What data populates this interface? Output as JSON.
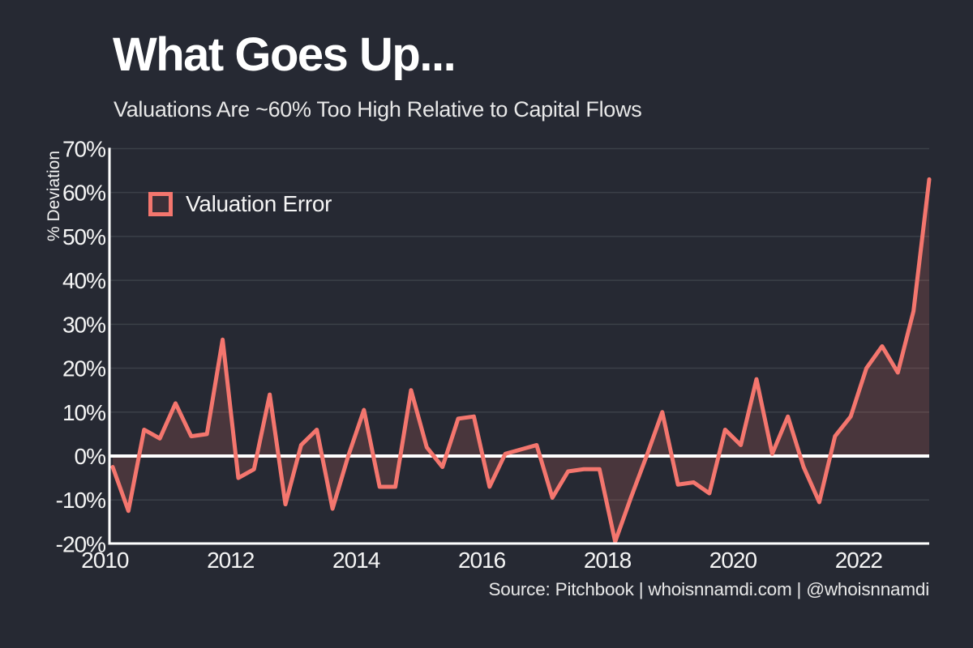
{
  "title": "What Goes Up...",
  "subtitle": "Valuations Are ~60% Too High Relative to Capital Flows",
  "source": "Source: Pitchbook | whoisnnamdi.com | @whoisnnamdi",
  "y_axis_label": "% Deviation",
  "legend": {
    "label": "Valuation Error"
  },
  "colors": {
    "background": "#262933",
    "line": "#f4766e",
    "area_fill": "rgba(248,118,109,0.17)",
    "zero_line": "#ffffff",
    "axis": "#ffffff",
    "gridline": "#3b4048",
    "text": "#f5f5f5",
    "muted_text": "#e8e8e8"
  },
  "chart_data": {
    "type": "area",
    "title": "What Goes Up...",
    "subtitle": "Valuations Are ~60% Too High Relative to Capital Flows",
    "ylabel": "% Deviation",
    "xlabel": "",
    "ylim": [
      -20,
      70
    ],
    "xlim": [
      2010,
      2023.25
    ],
    "grid": "horizontal",
    "legend_position": "top-left-inside",
    "y_ticks": [
      70,
      60,
      50,
      40,
      30,
      20,
      10,
      0,
      -10,
      -20
    ],
    "y_tick_suffix": "%",
    "x_ticks": [
      2010,
      2012,
      2014,
      2016,
      2018,
      2020,
      2022
    ],
    "frequency": "quarterly",
    "series": [
      {
        "name": "Valuation Error",
        "quarters": [
          "2010Q1",
          "2010Q2",
          "2010Q3",
          "2010Q4",
          "2011Q1",
          "2011Q2",
          "2011Q3",
          "2011Q4",
          "2012Q1",
          "2012Q2",
          "2012Q3",
          "2012Q4",
          "2013Q1",
          "2013Q2",
          "2013Q3",
          "2013Q4",
          "2014Q1",
          "2014Q2",
          "2014Q3",
          "2014Q4",
          "2015Q1",
          "2015Q2",
          "2015Q3",
          "2015Q4",
          "2016Q1",
          "2016Q2",
          "2016Q3",
          "2016Q4",
          "2017Q1",
          "2017Q2",
          "2017Q3",
          "2017Q4",
          "2018Q1",
          "2018Q2",
          "2018Q3",
          "2018Q4",
          "2019Q1",
          "2019Q2",
          "2019Q3",
          "2019Q4",
          "2020Q1",
          "2020Q2",
          "2020Q3",
          "2020Q4",
          "2021Q1",
          "2021Q2",
          "2021Q3",
          "2021Q4",
          "2022Q1",
          "2022Q2",
          "2022Q3",
          "2022Q4",
          "2023Q1"
        ],
        "values": [
          -2.5,
          -12.5,
          6,
          4,
          12,
          4.5,
          5,
          26.5,
          -5,
          -3,
          14,
          -11,
          2.5,
          6,
          -12,
          0,
          10.5,
          -7,
          -7,
          15,
          2,
          -2.5,
          8.5,
          9,
          -7,
          0.5,
          1.5,
          2.5,
          -9.5,
          -3.5,
          -3,
          -3,
          -19.5,
          -9.5,
          0,
          10,
          -6.5,
          -6,
          -8.5,
          6,
          2.5,
          17.5,
          0.5,
          9,
          -2.5,
          -10.5,
          4.5,
          9,
          20,
          25,
          19,
          33,
          63
        ]
      }
    ]
  }
}
